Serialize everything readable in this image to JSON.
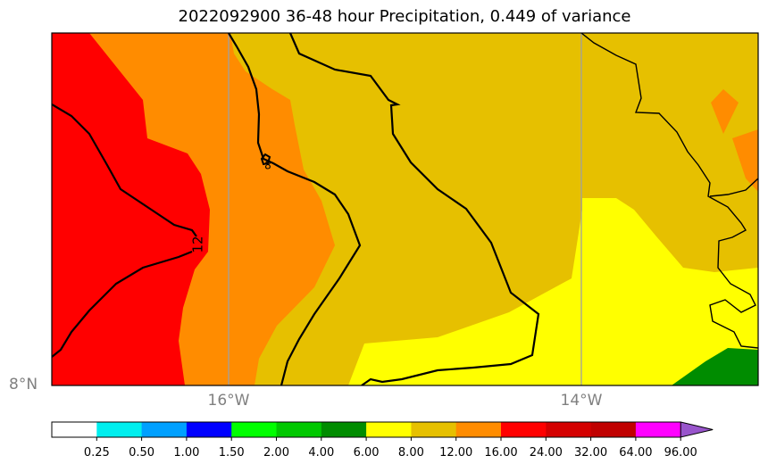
{
  "title": "2022092900 36-48 hour Precipitation, 0.449 of variance",
  "map": {
    "latitude_labels": [
      "8°N"
    ],
    "longitude_labels": [
      "16°W",
      "14°W"
    ],
    "contour_labels": [
      "12",
      "8"
    ],
    "fill_levels": [
      {
        "range": "8.00-12.00",
        "color": "#e6c000"
      },
      {
        "range": "12.00-16.00",
        "color": "#ff8c00"
      },
      {
        "range": "16.00-24.00",
        "color": "#ff0000"
      },
      {
        "range": "6.00-8.00",
        "color": "#ffff00"
      },
      {
        "range": "4.00-6.00",
        "color": "#008c00"
      }
    ]
  },
  "colorbar": {
    "colors": [
      "#ffffff",
      "#00eeee",
      "#00a0ff",
      "#0000ff",
      "#00ff00",
      "#00c800",
      "#008c00",
      "#ffff00",
      "#e6c000",
      "#ff8c00",
      "#ff0000",
      "#d40000",
      "#c00000",
      "#ff00ff",
      "#9955cc"
    ],
    "labels": [
      "0.25",
      "0.50",
      "1.00",
      "1.50",
      "2.00",
      "4.00",
      "6.00",
      "8.00",
      "12.00",
      "16.00",
      "24.00",
      "32.00",
      "64.00",
      "96.00"
    ],
    "extend": "max"
  }
}
